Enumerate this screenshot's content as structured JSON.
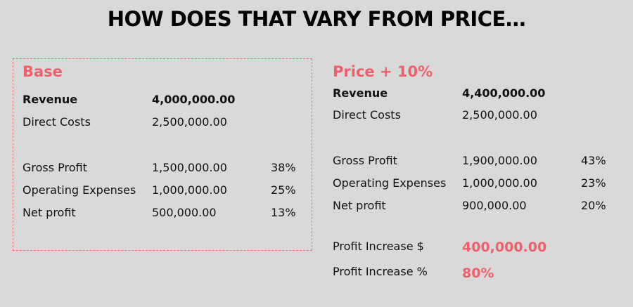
{
  "title": "HOW DOES THAT VARY FROM PRICE…",
  "colors": {
    "background": "#d9d9d9",
    "accent": "#f0606c",
    "text": "#111111"
  },
  "base": {
    "heading": "Base",
    "revenue": {
      "label": "Revenue",
      "value": "4,000,000.00"
    },
    "direct_costs": {
      "label": "Direct Costs",
      "value": "2,500,000.00"
    },
    "gross_profit": {
      "label": "Gross Profit",
      "value": "1,500,000.00",
      "pct": "38%"
    },
    "operating_expenses": {
      "label": "Operating Expenses",
      "value": "1,000,000.00",
      "pct": "25%"
    },
    "net_profit": {
      "label": "Net profit",
      "value": "500,000.00",
      "pct": "13%"
    }
  },
  "price_up": {
    "heading": "Price + 10%",
    "revenue": {
      "label": "Revenue",
      "value": "4,400,000.00"
    },
    "direct_costs": {
      "label": "Direct Costs",
      "value": "2,500,000.00"
    },
    "gross_profit": {
      "label": "Gross Profit",
      "value": "1,900,000.00",
      "pct": "43%"
    },
    "operating_expenses": {
      "label": "Operating Expenses",
      "value": "1,000,000.00",
      "pct": "23%"
    },
    "net_profit": {
      "label": "Net profit",
      "value": "900,000.00",
      "pct": "20%"
    },
    "profit_increase_dollar": {
      "label": "Profit Increase $",
      "value": "400,000.00"
    },
    "profit_increase_pct": {
      "label": "Profit Increase %",
      "value": "80%"
    }
  }
}
